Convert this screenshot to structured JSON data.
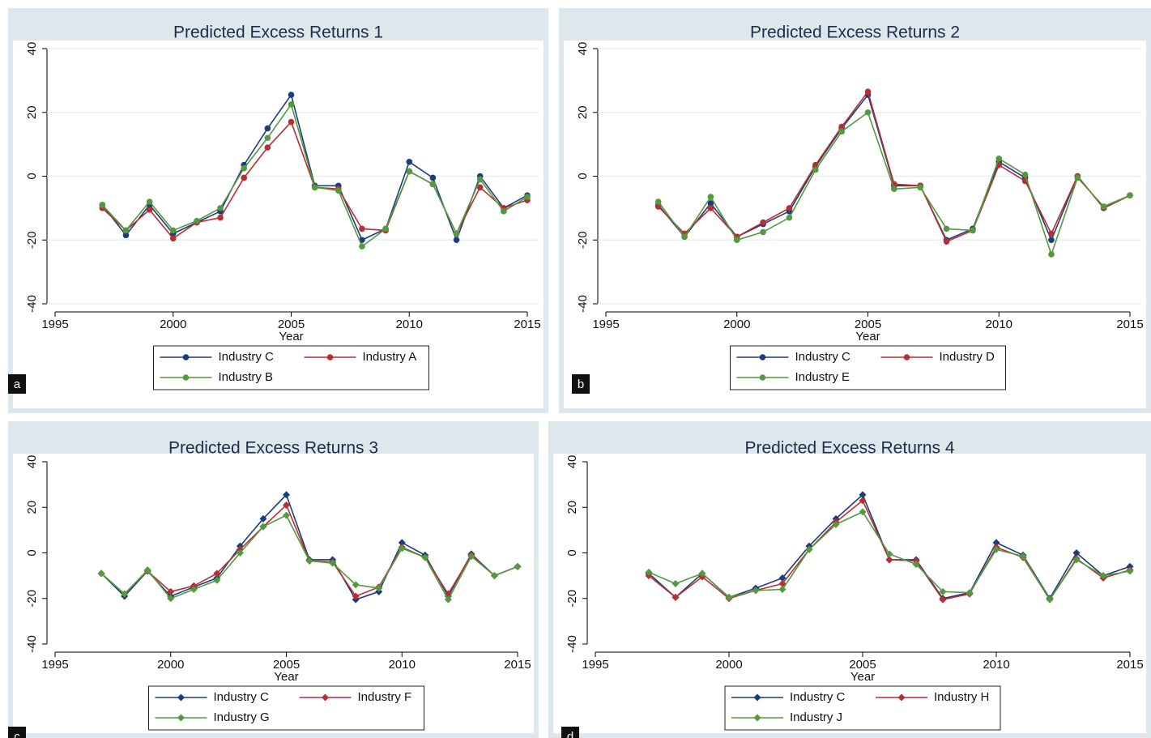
{
  "chart_data": [
    {
      "type": "line",
      "title": "Predicted Excess Returns 1",
      "label": "a",
      "xlabel": "Year",
      "x": [
        1997,
        1998,
        1999,
        2000,
        2001,
        2002,
        2003,
        2004,
        2005,
        2006,
        2007,
        2008,
        2009,
        2010,
        2011,
        2012,
        2013,
        2014,
        2015
      ],
      "xlim": [
        1995,
        2015
      ],
      "xticks": [
        1995,
        2000,
        2005,
        2010,
        2015
      ],
      "ylim": [
        -40,
        40
      ],
      "yticks": [
        -40,
        -20,
        0,
        20,
        40
      ],
      "grid": true,
      "legend": "bottom",
      "marker": "circle",
      "series": [
        {
          "name": "Industry C",
          "color": "#1b3d78",
          "values": [
            -9,
            -18.5,
            -9,
            -18,
            -14.5,
            -11,
            3.5,
            15,
            25.5,
            -3,
            -3,
            -20,
            -16.5,
            4.5,
            -0.5,
            -20,
            0,
            -10,
            -6
          ]
        },
        {
          "name": "Industry A",
          "color": "#b52f35",
          "values": [
            -10,
            -17,
            -10.5,
            -19.5,
            -14.5,
            -13,
            -0.5,
            9,
            17,
            -3.5,
            -4,
            -16.5,
            -17,
            1.5,
            -2.5,
            -18,
            -3.5,
            -10,
            -7.5
          ]
        },
        {
          "name": "Industry B",
          "color": "#53993f",
          "values": [
            -9,
            -17,
            -8,
            -17,
            -14,
            -10,
            2.5,
            12,
            22.5,
            -3.5,
            -4.5,
            -22,
            -16.5,
            1.5,
            -2.5,
            -18,
            -1,
            -11,
            -6.5
          ]
        }
      ]
    },
    {
      "type": "line",
      "title": "Predicted Excess Returns 2",
      "label": "b",
      "xlabel": "Year",
      "x": [
        1997,
        1998,
        1999,
        2000,
        2001,
        2002,
        2003,
        2004,
        2005,
        2006,
        2007,
        2008,
        2009,
        2010,
        2011,
        2012,
        2013,
        2014,
        2015
      ],
      "xlim": [
        1995,
        2015
      ],
      "xticks": [
        1995,
        2000,
        2005,
        2010,
        2015
      ],
      "ylim": [
        -40,
        40
      ],
      "yticks": [
        -40,
        -20,
        0,
        20,
        40
      ],
      "grid": true,
      "legend": "bottom",
      "marker": "circle",
      "series": [
        {
          "name": "Industry C",
          "color": "#1b3d78",
          "values": [
            -9,
            -19,
            -8.5,
            -19,
            -15,
            -11,
            3,
            15,
            25.5,
            -3,
            -3,
            -20,
            -16.5,
            4.5,
            -0.5,
            -20,
            0,
            -10,
            -6
          ]
        },
        {
          "name": "Industry D",
          "color": "#b52f35",
          "values": [
            -9.5,
            -18,
            -10,
            -19,
            -14.5,
            -10,
            3.5,
            15.5,
            26.5,
            -2.5,
            -3,
            -20.5,
            -17,
            3.5,
            -1.5,
            -18,
            0,
            -10,
            -6
          ]
        },
        {
          "name": "Industry E",
          "color": "#53993f",
          "values": [
            -8,
            -19,
            -6.5,
            -20,
            -17.5,
            -13,
            2,
            14,
            20,
            -4,
            -3.5,
            -16.5,
            -17,
            5.5,
            0.5,
            -24.5,
            -0.5,
            -9.5,
            -6
          ]
        }
      ]
    },
    {
      "type": "line",
      "title": "Predicted Excess Returns 3",
      "label": "c",
      "xlabel": "Year",
      "x": [
        1997,
        1998,
        1999,
        2000,
        2001,
        2002,
        2003,
        2004,
        2005,
        2006,
        2007,
        2008,
        2009,
        2010,
        2011,
        2012,
        2013,
        2014,
        2015
      ],
      "xlim": [
        1995,
        2015
      ],
      "xticks": [
        1995,
        2000,
        2005,
        2010,
        2015
      ],
      "ylim": [
        -40,
        40
      ],
      "yticks": [
        -40,
        -20,
        0,
        20,
        40
      ],
      "grid": false,
      "legend": "bottom",
      "marker": "diamond",
      "series": [
        {
          "name": "Industry C",
          "color": "#1b3d78",
          "values": [
            -9,
            -19,
            -8,
            -19,
            -15,
            -11,
            3,
            15,
            25.5,
            -3,
            -3,
            -20.5,
            -17,
            4.5,
            -1,
            -19,
            -0.5,
            -10,
            -6
          ]
        },
        {
          "name": "Industry F",
          "color": "#b52f35",
          "values": [
            -9,
            -18,
            -8,
            -17,
            -14.5,
            -9,
            1.5,
            11.5,
            21,
            -3.5,
            -4,
            -19,
            -15,
            2.5,
            -2,
            -18,
            -1,
            -10,
            -6
          ]
        },
        {
          "name": "Industry G",
          "color": "#53993f",
          "values": [
            -9,
            -18,
            -7.5,
            -20,
            -16,
            -12,
            0,
            11.5,
            16.5,
            -3.5,
            -4.5,
            -14,
            -15.5,
            2,
            -2,
            -20.5,
            -1.5,
            -10,
            -6
          ]
        }
      ]
    },
    {
      "type": "line",
      "title": "Predicted Excess Returns 4",
      "label": "d",
      "xlabel": "Year",
      "x": [
        1997,
        1998,
        1999,
        2000,
        2001,
        2002,
        2003,
        2004,
        2005,
        2006,
        2007,
        2008,
        2009,
        2010,
        2011,
        2012,
        2013,
        2014,
        2015
      ],
      "xlim": [
        1995,
        2015
      ],
      "xticks": [
        1995,
        2000,
        2005,
        2010,
        2015
      ],
      "ylim": [
        -40,
        40
      ],
      "yticks": [
        -40,
        -20,
        0,
        20,
        40
      ],
      "grid": false,
      "legend": "bottom",
      "marker": "diamond",
      "series": [
        {
          "name": "Industry C",
          "color": "#1b3d78",
          "values": [
            -9,
            -19.5,
            -9,
            -19.5,
            -15.5,
            -11,
            3,
            15,
            25.5,
            -3,
            -3,
            -20,
            -17.5,
            4.5,
            -1,
            -20,
            0,
            -10,
            -6
          ]
        },
        {
          "name": "Industry H",
          "color": "#b52f35",
          "values": [
            -10,
            -19.5,
            -10.5,
            -20,
            -16.5,
            -13.5,
            1.5,
            13.5,
            23,
            -3,
            -3.5,
            -20.5,
            -18,
            2.5,
            -2,
            -20.5,
            -2.5,
            -11,
            -7.5
          ]
        },
        {
          "name": "Industry J",
          "color": "#53993f",
          "values": [
            -8.5,
            -13.5,
            -9,
            -19.5,
            -16.5,
            -16,
            1.5,
            12.5,
            18,
            -0.5,
            -5,
            -17,
            -17.5,
            1.5,
            -1.5,
            -20.5,
            -3,
            -10,
            -8
          ]
        }
      ]
    }
  ]
}
